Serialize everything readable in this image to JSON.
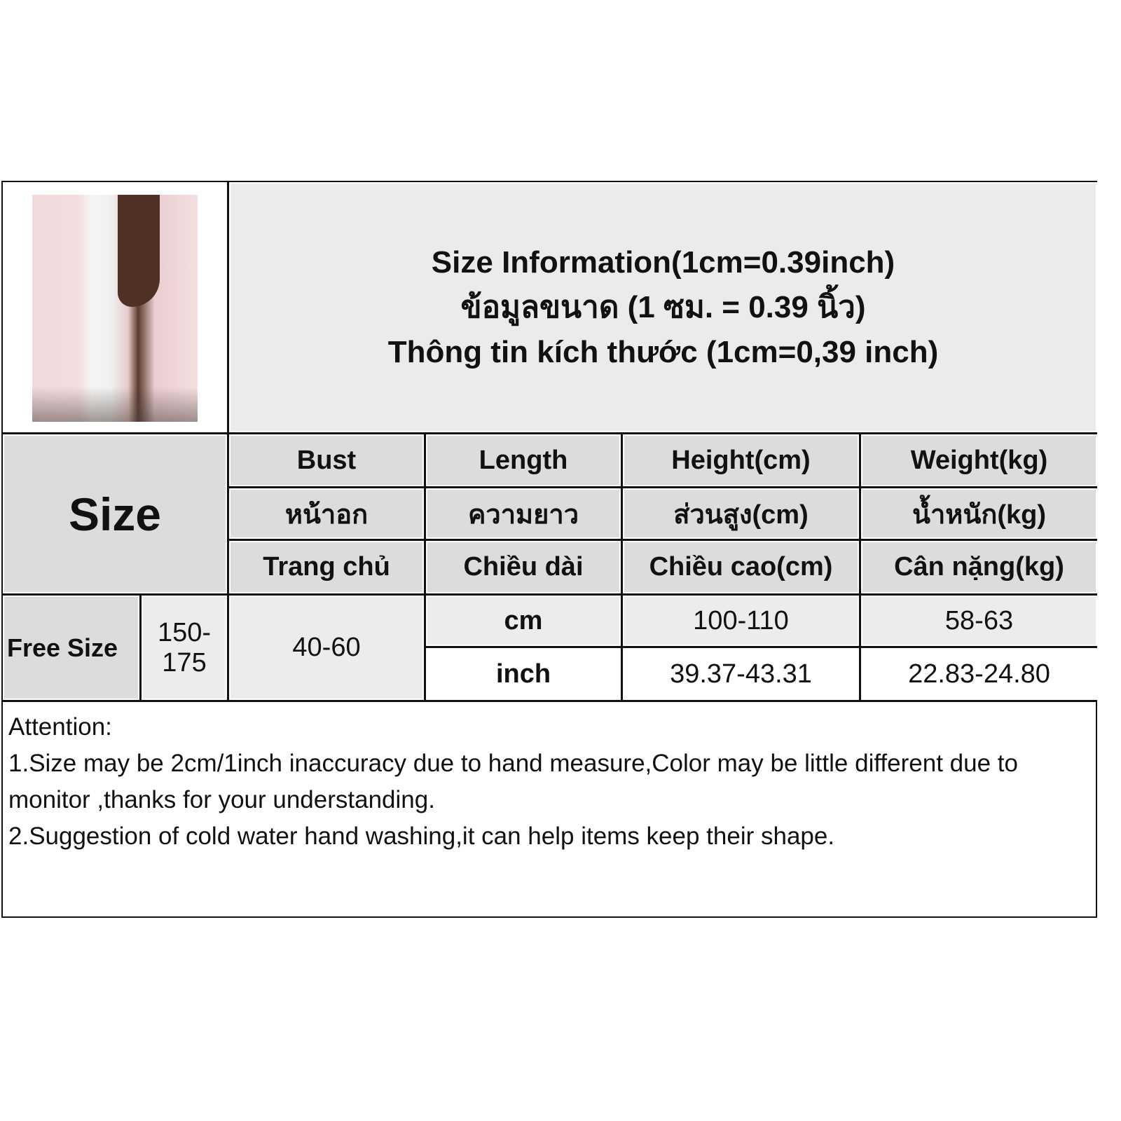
{
  "title_lines": [
    "Size Information(1cm=0.39inch)",
    "ข้อมูลขนาด (1 ซม. = 0.39 นิ้ว)",
    "Thông tin kích thước (1cm=0,39 inch)"
  ],
  "size_label": "Size",
  "columns": [
    {
      "en": "Bust",
      "th": "หน้าอก",
      "vi": "Trang chủ"
    },
    {
      "en": "Length",
      "th": "ความยาว",
      "vi": "Chiều dài"
    },
    {
      "en": "Height(cm)",
      "th": "ส่วนสูง(cm)",
      "vi": "Chiều cao(cm)"
    },
    {
      "en": "Weight(kg)",
      "th": "น้ำหนัก(kg)",
      "vi": "Cân nặng(kg)"
    }
  ],
  "row": {
    "size": "Free Size",
    "units": [
      "cm",
      "inch"
    ],
    "bust": [
      "100-110",
      "39.37-43.31"
    ],
    "length": [
      "58-63",
      "22.83-24.80"
    ],
    "height": "150-175",
    "weight": "40-60"
  },
  "attention": {
    "heading": "Attention:",
    "lines": [
      "1.Size may be 2cm/1inch inaccuracy due to hand measure,Color may be little different due to monitor ,thanks for your understanding.",
      "2.Suggestion of cold water hand washing,it can help items keep their shape."
    ]
  },
  "colors": {
    "header_bg": "#dcdcdc",
    "title_bg": "#ebebeb",
    "border": "#111111"
  }
}
